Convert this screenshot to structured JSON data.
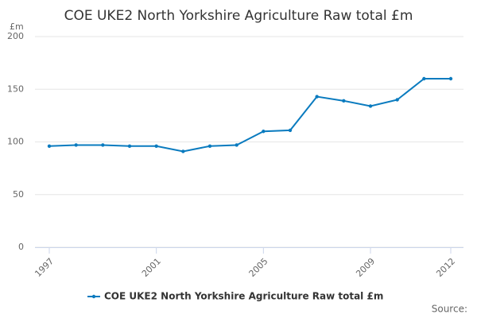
{
  "chart_data": {
    "type": "line",
    "title": "COE UKE2 North Yorkshire Agriculture Raw total £m",
    "y_label": "£m",
    "source_label": "Source:",
    "x": [
      1997,
      1998,
      1999,
      2000,
      2001,
      2002,
      2003,
      2004,
      2005,
      2006,
      2007,
      2008,
      2009,
      2010,
      2011,
      2012
    ],
    "series": [
      {
        "name": "COE UKE2 North Yorkshire Agriculture Raw total £m",
        "color": "#0a7bbf",
        "values": [
          96,
          97,
          97,
          96,
          96,
          91,
          96,
          97,
          110,
          111,
          143,
          139,
          134,
          140,
          160,
          160
        ]
      }
    ],
    "xlim": [
      1997,
      2012
    ],
    "xticks": [
      1997,
      2001,
      2005,
      2009,
      2012
    ],
    "ylim": [
      0,
      200
    ],
    "yticks": [
      0,
      50,
      100,
      150,
      200
    ],
    "grid": true,
    "legend": "bottom"
  }
}
